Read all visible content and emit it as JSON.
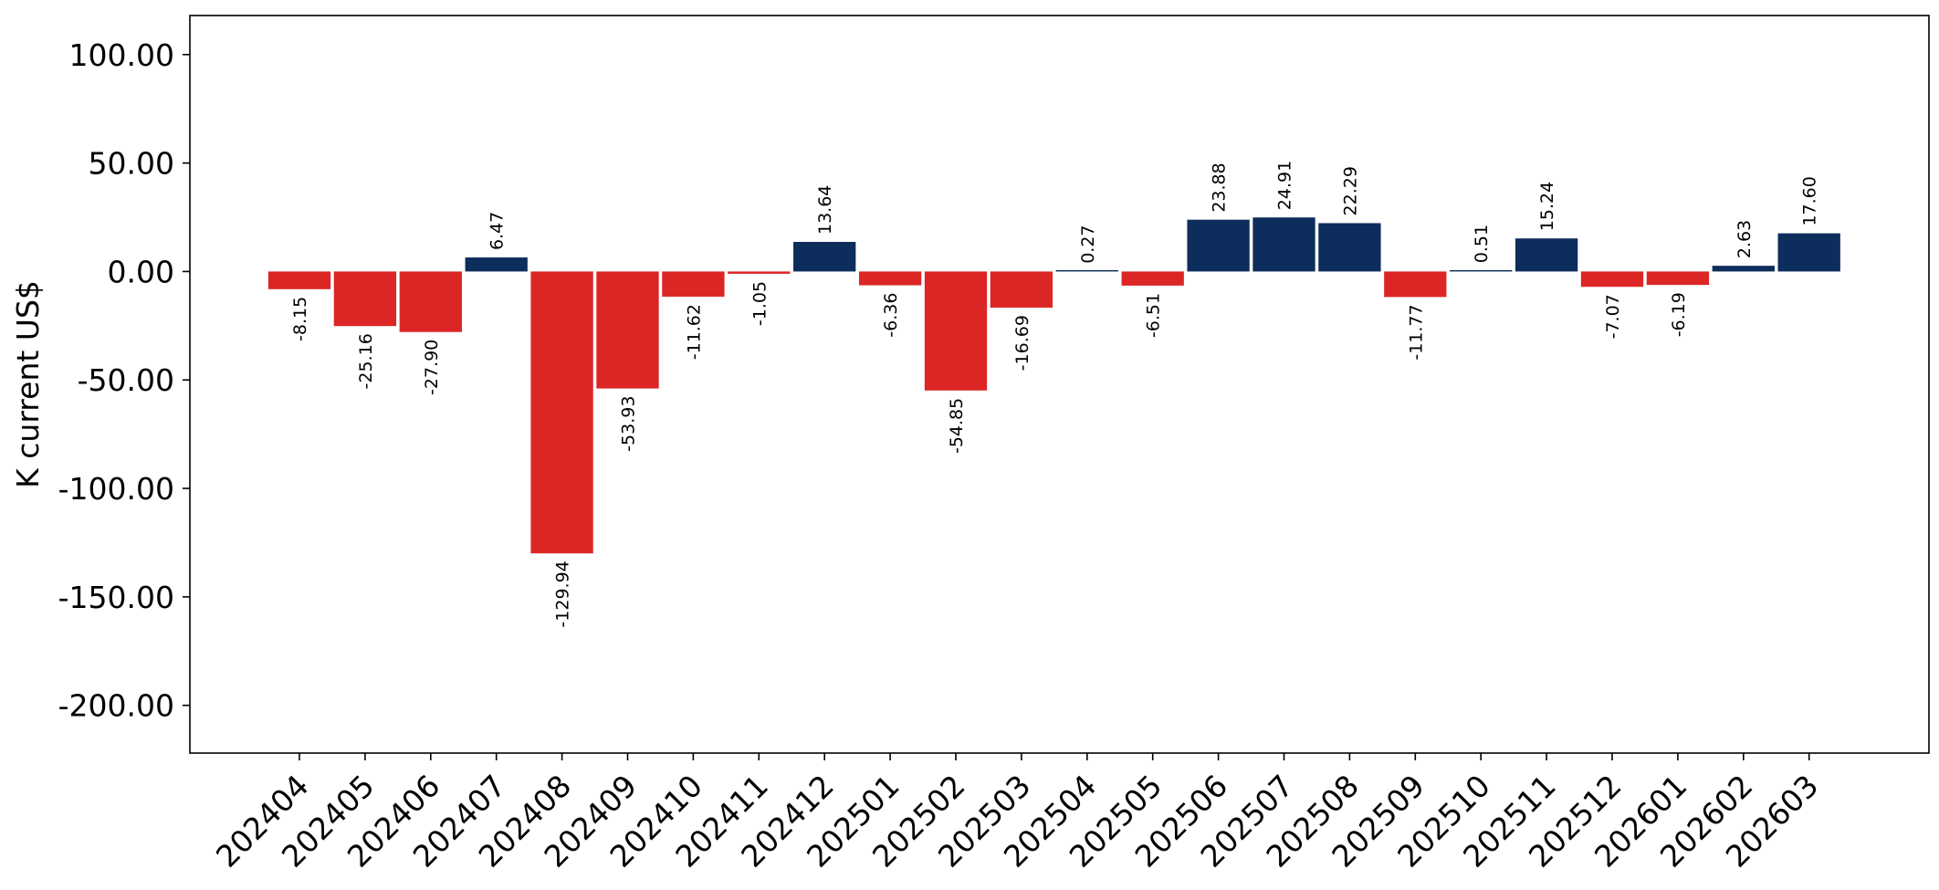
{
  "chart_data": {
    "type": "bar",
    "title": "",
    "xlabel": "",
    "ylabel": "K current US$",
    "ylim": [
      -222,
      118
    ],
    "yticks": [
      100,
      50,
      0,
      -50,
      -100,
      -150,
      -200
    ],
    "ytick_labels": [
      "100.00",
      "50.00",
      "0.00",
      "-50.00",
      "-100.00",
      "-150.00",
      "-200.00"
    ],
    "categories": [
      "202404",
      "202405",
      "202406",
      "202407",
      "202408",
      "202409",
      "202410",
      "202411",
      "202412",
      "202501",
      "202502",
      "202503",
      "202504",
      "202505",
      "202506",
      "202507",
      "202508",
      "202509",
      "202510",
      "202511",
      "202512",
      "202601",
      "202602",
      "202603"
    ],
    "values": [
      -8.15,
      -25.16,
      -27.9,
      6.47,
      -129.94,
      -53.93,
      -11.62,
      -1.05,
      13.64,
      -6.36,
      -54.85,
      -16.69,
      0.27,
      -6.51,
      23.88,
      24.91,
      22.29,
      -11.77,
      0.51,
      15.24,
      -7.07,
      -6.19,
      2.63,
      17.6
    ],
    "data_labels": [
      "-8.15",
      "-25.16",
      "-27.90",
      "6.47",
      "-129.94",
      "-53.93",
      "-11.62",
      "-1.05",
      "13.64",
      "-6.36",
      "-54.85",
      "-16.69",
      "0.27",
      "-6.51",
      "23.88",
      "24.91",
      "22.29",
      "-11.77",
      "0.51",
      "15.24",
      "-7.07",
      "-6.19",
      "2.63",
      "17.60"
    ],
    "colors": {
      "positive": "#0d2d5c",
      "negative": "#dc2626"
    },
    "grid": false,
    "legend": "none"
  }
}
